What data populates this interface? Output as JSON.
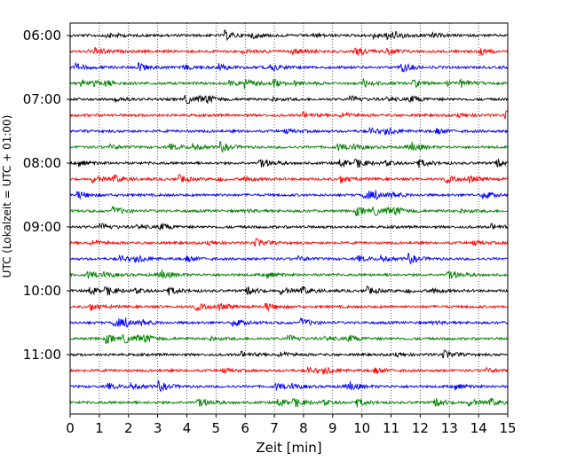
{
  "chart_data": {
    "type": "line",
    "title": "",
    "xlabel": "Zeit  [min]",
    "ylabel": "UTC (Lokalzeit = UTC + 01:00)",
    "xlim": [
      0,
      15
    ],
    "x_ticks": [
      0,
      1,
      2,
      3,
      4,
      5,
      6,
      7,
      8,
      9,
      10,
      11,
      12,
      13,
      14,
      15
    ],
    "y_ticks": [
      "06:00",
      "07:00",
      "08:00",
      "09:00",
      "10:00",
      "11:00"
    ],
    "grid": "vertical dotted",
    "trace_interval_min": 15,
    "trace_colors": [
      "#000000",
      "#ff0000",
      "#0000ff",
      "#008000"
    ],
    "trace_start_times": [
      "06:00",
      "06:15",
      "06:30",
      "06:45",
      "07:00",
      "07:15",
      "07:30",
      "07:45",
      "08:00",
      "08:15",
      "08:30",
      "08:45",
      "09:00",
      "09:15",
      "09:30",
      "09:45",
      "10:00",
      "10:15",
      "10:30",
      "10:45",
      "11:00",
      "11:15",
      "11:30",
      "11:45"
    ]
  }
}
